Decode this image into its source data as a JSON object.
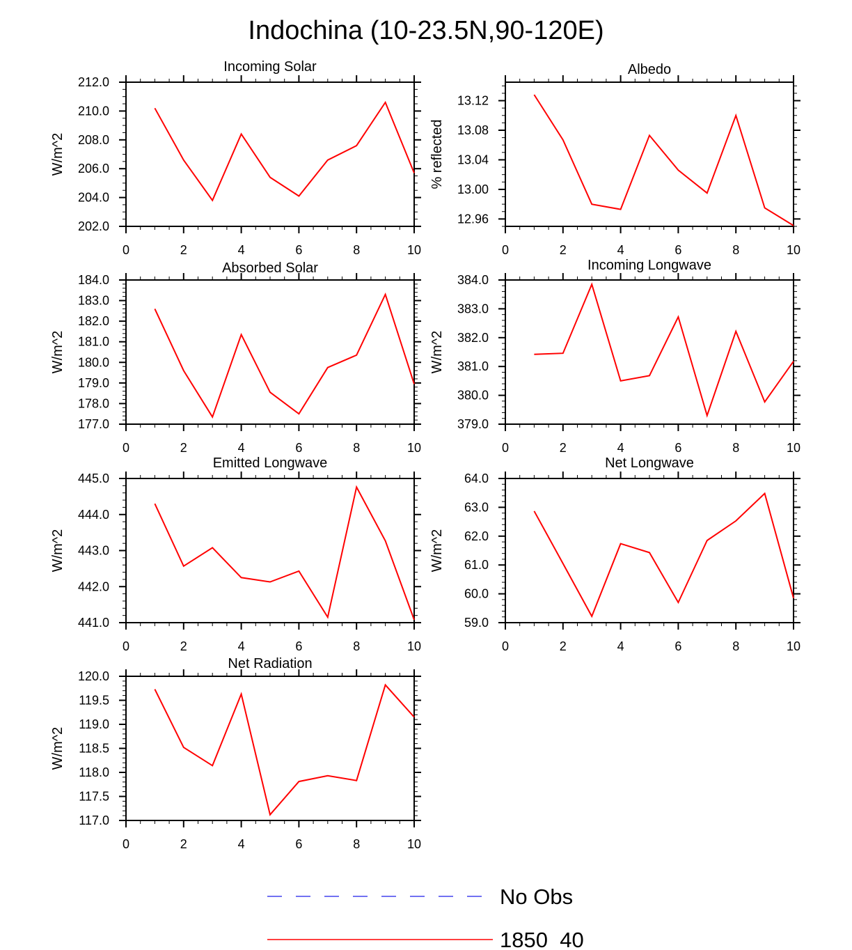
{
  "figure_title": "Indochina (10-23.5N,90-120E)",
  "legend": {
    "entries": [
      {
        "label": "No Obs",
        "color": "#4444ee",
        "style": "dashed"
      },
      {
        "label": "1850_40",
        "color": "#ff0000",
        "style": "solid"
      }
    ]
  },
  "chart_data": [
    {
      "type": "line",
      "title": "Incoming Solar",
      "ylabel": "W/m^2",
      "xlim": [
        0,
        10
      ],
      "ylim": [
        202.0,
        212.0
      ],
      "xticks": [
        0,
        2,
        4,
        6,
        8,
        10
      ],
      "xtick_labels": [
        "0",
        "2",
        "4",
        "6",
        "8",
        "10"
      ],
      "yticks": [
        202.0,
        204.0,
        206.0,
        208.0,
        210.0,
        212.0
      ],
      "ytick_labels": [
        "202.0",
        "204.0",
        "206.0",
        "208.0",
        "210.0",
        "212.0"
      ],
      "series": [
        {
          "name": "1850_40",
          "color": "#ff0000",
          "x": [
            1,
            2,
            3,
            4,
            5,
            6,
            7,
            8,
            9,
            10
          ],
          "values": [
            210.2,
            206.6,
            203.8,
            208.4,
            205.4,
            204.1,
            206.6,
            207.6,
            210.6,
            205.7
          ]
        }
      ]
    },
    {
      "type": "line",
      "title": "Albedo",
      "ylabel": "% reflected",
      "xlim": [
        0,
        10
      ],
      "ylim": [
        12.95,
        13.145
      ],
      "xticks": [
        0,
        2,
        4,
        6,
        8,
        10
      ],
      "xtick_labels": [
        "0",
        "2",
        "4",
        "6",
        "8",
        "10"
      ],
      "yticks": [
        12.96,
        13.0,
        13.04,
        13.08,
        13.12
      ],
      "ytick_labels": [
        "12.96",
        "13.00",
        "13.04",
        "13.08",
        "13.12"
      ],
      "series": [
        {
          "name": "1850_40",
          "color": "#ff0000",
          "x": [
            1,
            2,
            3,
            4,
            5,
            6,
            7,
            8,
            9,
            10
          ],
          "values": [
            13.128,
            13.067,
            12.98,
            12.973,
            13.073,
            13.026,
            12.995,
            13.1,
            12.975,
            12.951
          ]
        }
      ]
    },
    {
      "type": "line",
      "title": "Absorbed Solar",
      "ylabel": "W/m^2",
      "xlim": [
        0,
        10
      ],
      "ylim": [
        177.0,
        184.0
      ],
      "xticks": [
        0,
        2,
        4,
        6,
        8,
        10
      ],
      "xtick_labels": [
        "0",
        "2",
        "4",
        "6",
        "8",
        "10"
      ],
      "yticks": [
        177.0,
        178.0,
        179.0,
        180.0,
        181.0,
        182.0,
        183.0,
        184.0
      ],
      "ytick_labels": [
        "177.0",
        "178.0",
        "179.0",
        "180.0",
        "181.0",
        "182.0",
        "183.0",
        "184.0"
      ],
      "series": [
        {
          "name": "1850_40",
          "color": "#ff0000",
          "x": [
            1,
            2,
            3,
            4,
            5,
            6,
            7,
            8,
            9,
            10
          ],
          "values": [
            182.6,
            179.6,
            177.35,
            181.35,
            178.55,
            177.5,
            179.75,
            180.35,
            183.3,
            178.95
          ]
        }
      ]
    },
    {
      "type": "line",
      "title": "Incoming Longwave",
      "ylabel": "W/m^2",
      "xlim": [
        0,
        10
      ],
      "ylim": [
        379.0,
        384.0
      ],
      "xticks": [
        0,
        2,
        4,
        6,
        8,
        10
      ],
      "xtick_labels": [
        "0",
        "2",
        "4",
        "6",
        "8",
        "10"
      ],
      "yticks": [
        379.0,
        380.0,
        381.0,
        382.0,
        383.0,
        384.0
      ],
      "ytick_labels": [
        "379.0",
        "380.0",
        "381.0",
        "382.0",
        "383.0",
        "384.0"
      ],
      "series": [
        {
          "name": "1850_40",
          "color": "#ff0000",
          "x": [
            1,
            2,
            3,
            4,
            5,
            6,
            7,
            8,
            9,
            10
          ],
          "values": [
            381.42,
            381.46,
            383.85,
            380.5,
            380.68,
            382.72,
            379.3,
            382.22,
            379.77,
            381.18
          ]
        }
      ]
    },
    {
      "type": "line",
      "title": "Emitted Longwave",
      "ylabel": "W/m^2",
      "xlim": [
        0,
        10
      ],
      "ylim": [
        441.0,
        445.0
      ],
      "xticks": [
        0,
        2,
        4,
        6,
        8,
        10
      ],
      "xtick_labels": [
        "0",
        "2",
        "4",
        "6",
        "8",
        "10"
      ],
      "yticks": [
        441.0,
        442.0,
        443.0,
        444.0,
        445.0
      ],
      "ytick_labels": [
        "441.0",
        "442.0",
        "443.0",
        "444.0",
        "445.0"
      ],
      "series": [
        {
          "name": "1850_40",
          "color": "#ff0000",
          "x": [
            1,
            2,
            3,
            4,
            5,
            6,
            7,
            8,
            9,
            10
          ],
          "values": [
            444.3,
            442.57,
            443.08,
            442.25,
            442.13,
            442.43,
            441.15,
            444.76,
            443.27,
            441.08
          ]
        }
      ]
    },
    {
      "type": "line",
      "title": "Net Longwave",
      "ylabel": "W/m^2",
      "xlim": [
        0,
        10
      ],
      "ylim": [
        59.0,
        64.0
      ],
      "xticks": [
        0,
        2,
        4,
        6,
        8,
        10
      ],
      "xtick_labels": [
        "0",
        "2",
        "4",
        "6",
        "8",
        "10"
      ],
      "yticks": [
        59.0,
        60.0,
        61.0,
        62.0,
        63.0,
        64.0
      ],
      "ytick_labels": [
        "59.0",
        "60.0",
        "61.0",
        "62.0",
        "63.0",
        "64.0"
      ],
      "series": [
        {
          "name": "1850_40",
          "color": "#ff0000",
          "x": [
            1,
            2,
            3,
            4,
            5,
            6,
            7,
            8,
            9,
            10
          ],
          "values": [
            62.87,
            61.05,
            59.22,
            61.74,
            61.43,
            59.7,
            61.85,
            62.53,
            63.48,
            59.85
          ]
        }
      ]
    },
    {
      "type": "line",
      "title": "Net Radiation",
      "ylabel": "W/m^2",
      "xlim": [
        0,
        10
      ],
      "ylim": [
        117.0,
        120.0
      ],
      "xticks": [
        0,
        2,
        4,
        6,
        8,
        10
      ],
      "xtick_labels": [
        "0",
        "2",
        "4",
        "6",
        "8",
        "10"
      ],
      "yticks": [
        117.0,
        117.5,
        118.0,
        118.5,
        119.0,
        119.5,
        120.0
      ],
      "ytick_labels": [
        "117.0",
        "117.5",
        "118.0",
        "118.5",
        "119.0",
        "119.5",
        "120.0"
      ],
      "series": [
        {
          "name": "1850_40",
          "color": "#ff0000",
          "x": [
            1,
            2,
            3,
            4,
            5,
            6,
            7,
            8,
            9,
            10
          ],
          "values": [
            119.73,
            118.52,
            118.14,
            119.63,
            117.12,
            117.81,
            117.93,
            117.83,
            119.82,
            119.15
          ]
        }
      ]
    }
  ]
}
